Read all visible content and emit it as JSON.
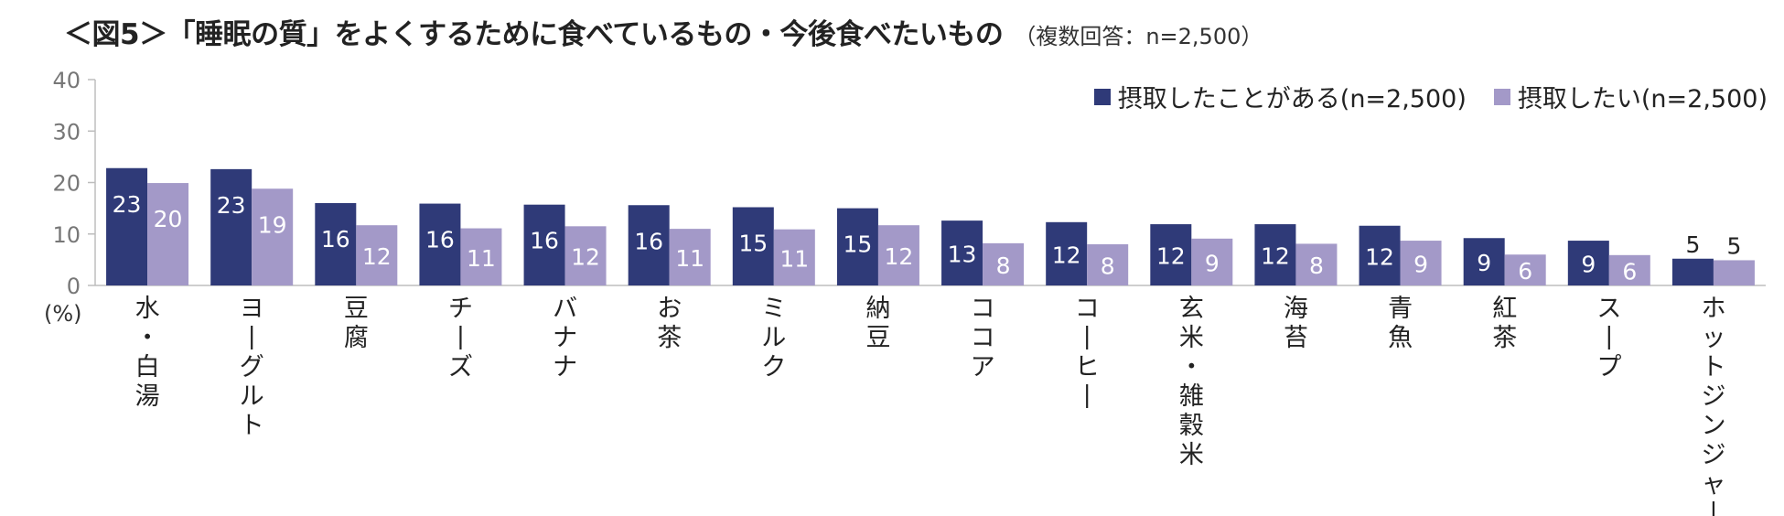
{
  "chart_data": {
    "type": "bar",
    "title": "＜図5＞「睡眠の質」をよくするために食べているもの・今後食べたいもの",
    "subtitle": "（複数回答：n=2,500）",
    "ylabel": "(%)",
    "ylim": [
      0,
      40
    ],
    "yticks": [
      "0",
      "10",
      "20",
      "30",
      "40"
    ],
    "legend_position": "top-right",
    "categories": [
      "水・白湯",
      "ヨーグルト",
      "豆腐",
      "チーズ",
      "バナナ",
      "お茶",
      "ミルク",
      "納豆",
      "ココア",
      "コーヒー",
      "玄米・雑穀米",
      "海苔",
      "青魚",
      "紅茶",
      "スープ",
      "ホットジンジャー"
    ],
    "series": [
      {
        "name": "摂取したことがある(n=2,500)",
        "color": "#2f3a78",
        "values": [
          22.8,
          22.6,
          16.0,
          15.9,
          15.7,
          15.6,
          15.2,
          15.0,
          12.6,
          12.3,
          11.9,
          11.9,
          11.6,
          9.2,
          8.7,
          5.2
        ],
        "labels": [
          "23",
          "23",
          "16",
          "16",
          "16",
          "16",
          "15",
          "15",
          "13",
          "12",
          "12",
          "12",
          "12",
          "9",
          "9",
          "5"
        ]
      },
      {
        "name": "摂取したい(n=2,500)",
        "color": "#a399c8",
        "values": [
          19.9,
          18.8,
          11.7,
          11.1,
          11.5,
          11.0,
          10.9,
          11.7,
          8.2,
          8.0,
          9.1,
          8.1,
          8.7,
          6.0,
          5.9,
          4.9
        ],
        "labels": [
          "20",
          "19",
          "12",
          "11",
          "12",
          "11",
          "11",
          "12",
          "8",
          "8",
          "9",
          "8",
          "9",
          "6",
          "6",
          "5"
        ]
      }
    ]
  }
}
